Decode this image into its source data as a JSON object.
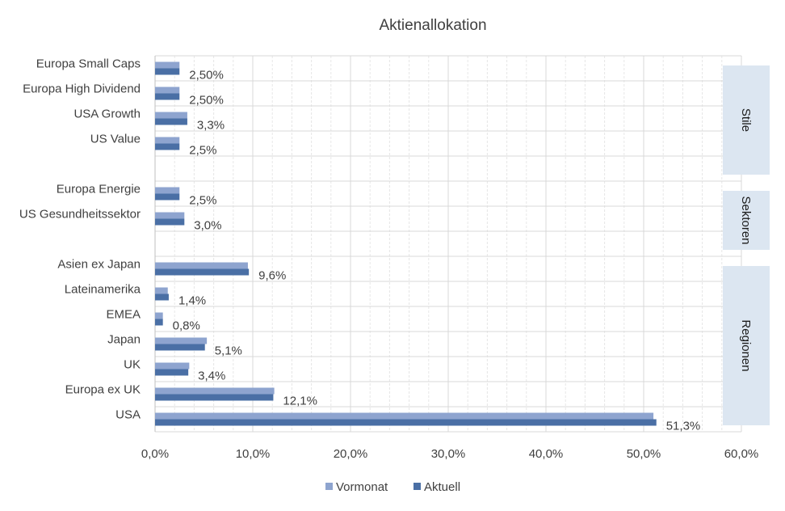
{
  "chart_data": {
    "type": "bar",
    "orientation": "horizontal",
    "title": "Aktienallokation",
    "categories": [
      "Europa Small Caps",
      "Europa High Dividend",
      "USA Growth",
      "US Value",
      "",
      "Europa Energie",
      "US Gesundheitssektor",
      "",
      "Asien ex Japan",
      "Lateinamerika",
      "EMEA",
      "Japan",
      "UK",
      "Europa ex UK",
      "USA"
    ],
    "series": [
      {
        "name": "Vormonat",
        "color": "#8ea4cf",
        "values": [
          2.5,
          2.5,
          3.3,
          2.5,
          null,
          2.5,
          3.0,
          null,
          9.5,
          1.3,
          0.8,
          5.3,
          3.5,
          12.2,
          51.0
        ]
      },
      {
        "name": "Aktuell",
        "color": "#4a6fa5",
        "values": [
          2.5,
          2.5,
          3.3,
          2.5,
          null,
          2.5,
          3.0,
          null,
          9.6,
          1.4,
          0.8,
          5.1,
          3.4,
          12.1,
          51.3
        ]
      }
    ],
    "data_labels": [
      "2,50%",
      "2,50%",
      "3,3%",
      "2,5%",
      "",
      "2,5%",
      "3,0%",
      "",
      "9,6%",
      "1,4%",
      "0,8%",
      "5,1%",
      "3,4%",
      "12,1%",
      "51,3%"
    ],
    "x_ticks": [
      "0,0%",
      "10,0%",
      "20,0%",
      "30,0%",
      "40,0%",
      "50,0%",
      "60,0%"
    ],
    "xlim": [
      0,
      60
    ],
    "grid": true,
    "legend": "bottom",
    "groups": [
      {
        "label": "Stile",
        "from": 0,
        "to": 4
      },
      {
        "label": "Sektoren",
        "from": 5,
        "to": 7
      },
      {
        "label": "Regionen",
        "from": 8,
        "to": 14
      }
    ],
    "group_color": "#dce6f1"
  }
}
